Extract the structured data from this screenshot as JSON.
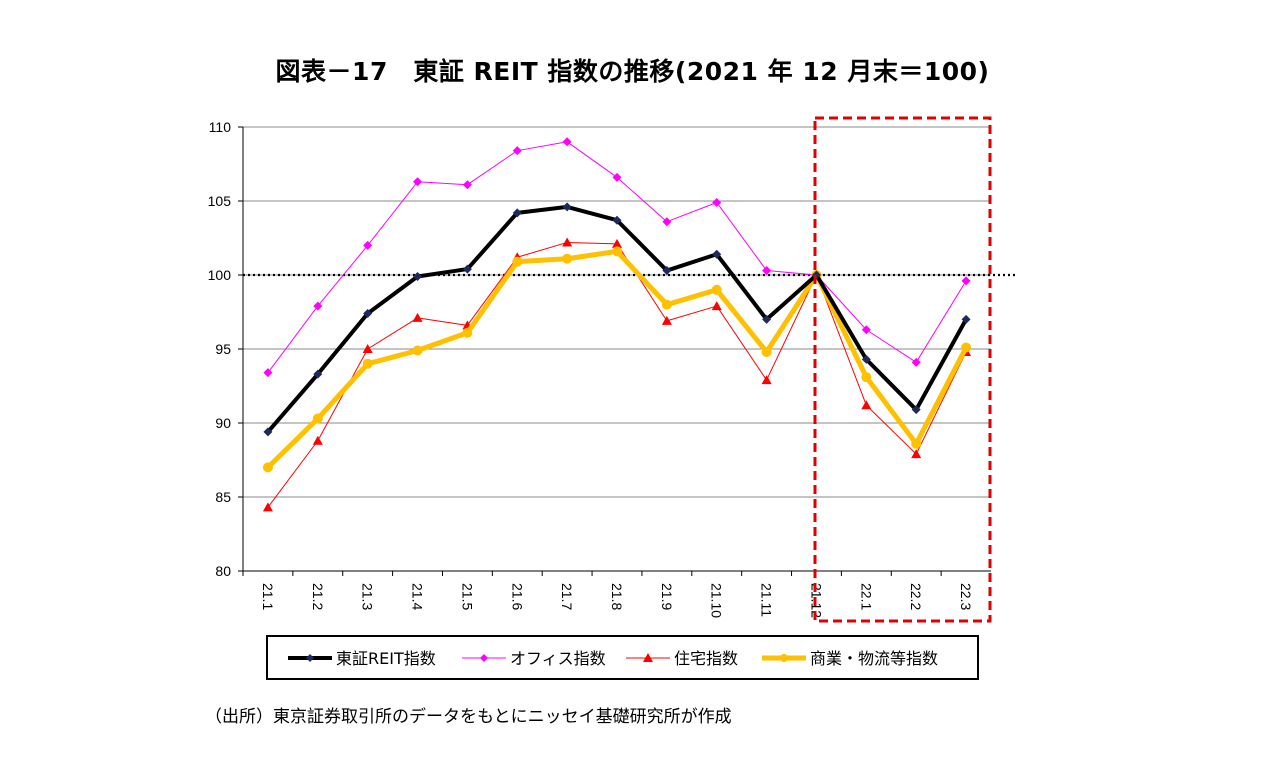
{
  "chart_data": {
    "type": "line",
    "title": "図表－17　東証 REIT 指数の推移(2021 年 12 月末＝100)",
    "categories": [
      "21.1",
      "21.2",
      "21.3",
      "21.4",
      "21.5",
      "21.6",
      "21.7",
      "21.8",
      "21.9",
      "21.10",
      "21.11",
      "21.12",
      "22.1",
      "22.2",
      "22.3"
    ],
    "ylim": [
      80,
      110
    ],
    "yticks": [
      80,
      85,
      90,
      95,
      100,
      105,
      110
    ],
    "grid": true,
    "reference_line": 100,
    "highlight_range": [
      "21.12",
      "22.3"
    ],
    "legend_position": "bottom",
    "series": [
      {
        "name": "東証REIT指数",
        "color": "#000000",
        "marker_color": "#1f2a5c",
        "marker": "diamond",
        "values": [
          89.4,
          93.3,
          97.4,
          99.9,
          100.4,
          104.2,
          104.6,
          103.7,
          100.3,
          101.4,
          97.0,
          100,
          94.3,
          90.9,
          97.0
        ]
      },
      {
        "name": "オフィス指数",
        "color": "#ff00ff",
        "marker_color": "#ff00ff",
        "marker": "diamond",
        "values": [
          93.4,
          97.9,
          102.0,
          106.3,
          106.1,
          108.4,
          109.0,
          106.6,
          103.6,
          104.9,
          100.3,
          100,
          96.3,
          94.1,
          99.6
        ]
      },
      {
        "name": "住宅指数",
        "color": "#ff0000",
        "marker_color": "#ff0000",
        "marker": "triangle",
        "values": [
          84.3,
          88.8,
          95.0,
          97.1,
          96.6,
          101.2,
          102.2,
          102.1,
          96.9,
          97.9,
          92.9,
          100,
          91.2,
          87.9,
          94.8
        ]
      },
      {
        "name": "商業・物流等指数",
        "color": "#ffc000",
        "marker_color": "#ffc000",
        "marker": "circle",
        "values": [
          87.0,
          90.3,
          94.0,
          94.9,
          96.1,
          100.9,
          101.1,
          101.6,
          98.0,
          99.0,
          94.8,
          100,
          93.1,
          88.6,
          95.1
        ]
      }
    ],
    "highlight_color": "#e00000"
  },
  "source": "（出所）東京証券取引所のデータをもとにニッセイ基礎研究所が作成"
}
